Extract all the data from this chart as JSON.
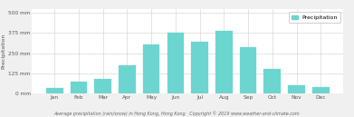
{
  "months": [
    "Jan",
    "Feb",
    "Mar",
    "Apr",
    "May",
    "Jun",
    "Jul",
    "Aug",
    "Sep",
    "Oct",
    "Nov",
    "Dec"
  ],
  "precipitation": [
    33,
    73,
    90,
    175,
    305,
    375,
    320,
    390,
    285,
    150,
    50,
    38
  ],
  "bar_color": "#6dd5d0",
  "bar_edge_color": "#6dd5d0",
  "ylabel": "Precipitation",
  "yticks": [
    0,
    125,
    250,
    375,
    500
  ],
  "ytick_labels": [
    "0 mm",
    "125 mm",
    "250 mm",
    "375 mm",
    "500 mm"
  ],
  "ylim": [
    0,
    520
  ],
  "legend_label": "Precipitation",
  "legend_color": "#6dd5d0",
  "caption": "Average precipitation (rain/snow) in Hong Kong, Hong Kong   Copyright © 2019 www.weather-and-climate.com",
  "background_color": "#f0f0f0",
  "plot_bg_color": "#ffffff",
  "grid_color": "#d0d0d0",
  "axis_fontsize": 4.5,
  "tick_fontsize": 4.2,
  "legend_fontsize": 4.5,
  "caption_fontsize": 3.5
}
